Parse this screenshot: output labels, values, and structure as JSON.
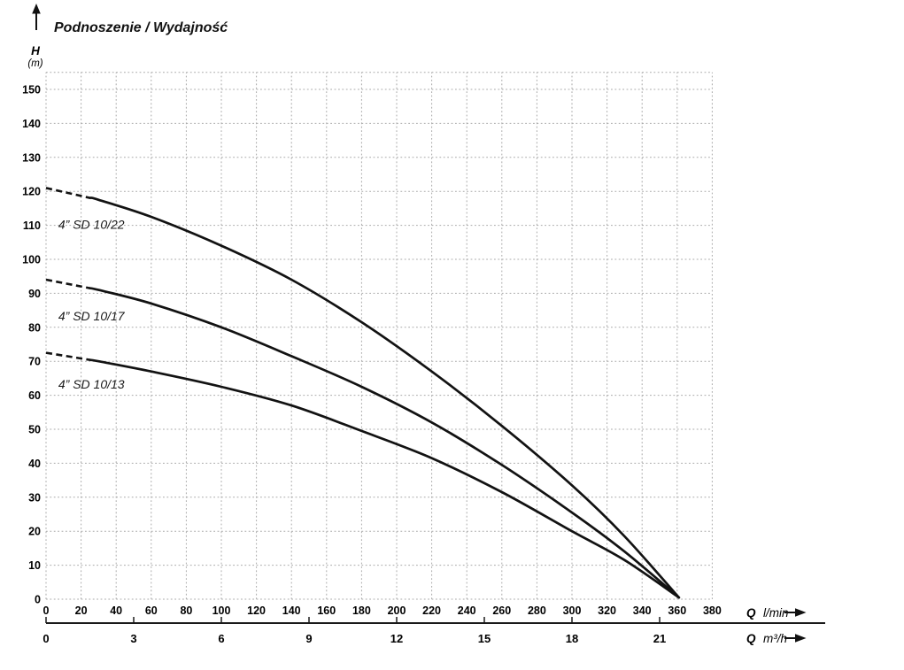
{
  "chart_data": {
    "type": "line",
    "title": "Podnoszenie / Wydajność",
    "y_axis": {
      "symbol": "H",
      "unit": "(m)",
      "ticks": [
        0,
        10,
        20,
        30,
        40,
        50,
        60,
        70,
        80,
        90,
        100,
        110,
        120,
        130,
        140,
        150
      ],
      "range": [
        0,
        155
      ],
      "grid_step": 10
    },
    "x_axis_primary": {
      "symbol": "Q",
      "unit": "l/min",
      "ticks": [
        0,
        20,
        40,
        60,
        80,
        100,
        120,
        140,
        160,
        180,
        200,
        220,
        240,
        260,
        280,
        300,
        320,
        340,
        360,
        380
      ],
      "range": [
        0,
        380
      ],
      "grid_step": 20
    },
    "x_axis_secondary": {
      "symbol": "Q",
      "unit": "m³/h",
      "ticks": [
        0,
        3,
        6,
        9,
        12,
        15,
        18,
        21
      ],
      "lmin_per_unit": 16.6667
    },
    "grid": {
      "style": "dotted",
      "color": "#a9a9a9"
    },
    "legend_position": "on-curve",
    "series": [
      {
        "name": "4” SD 10/22",
        "label_pos": [
          7,
          109
        ],
        "dashed_until": 25,
        "points": [
          [
            0,
            121
          ],
          [
            30,
            117.5
          ],
          [
            60,
            112.5
          ],
          [
            100,
            104
          ],
          [
            140,
            94
          ],
          [
            180,
            81.5
          ],
          [
            220,
            67
          ],
          [
            260,
            51
          ],
          [
            300,
            33.5
          ],
          [
            330,
            18.5
          ],
          [
            361,
            0.5
          ]
        ]
      },
      {
        "name": "4” SD 10/17",
        "label_pos": [
          7,
          82
        ],
        "dashed_until": 25,
        "points": [
          [
            0,
            94
          ],
          [
            30,
            91
          ],
          [
            60,
            87
          ],
          [
            100,
            80
          ],
          [
            140,
            71.5
          ],
          [
            180,
            62.5
          ],
          [
            220,
            52
          ],
          [
            260,
            39.5
          ],
          [
            300,
            25.5
          ],
          [
            330,
            14
          ],
          [
            361,
            0.5
          ]
        ]
      },
      {
        "name": "4” SD 10/13",
        "label_pos": [
          7,
          62
        ],
        "dashed_until": 25,
        "points": [
          [
            0,
            72.5
          ],
          [
            30,
            70
          ],
          [
            60,
            67
          ],
          [
            100,
            62.5
          ],
          [
            140,
            57
          ],
          [
            180,
            49.5
          ],
          [
            220,
            41.5
          ],
          [
            260,
            31.5
          ],
          [
            300,
            20
          ],
          [
            330,
            11.5
          ],
          [
            361,
            0.5
          ]
        ]
      }
    ]
  }
}
